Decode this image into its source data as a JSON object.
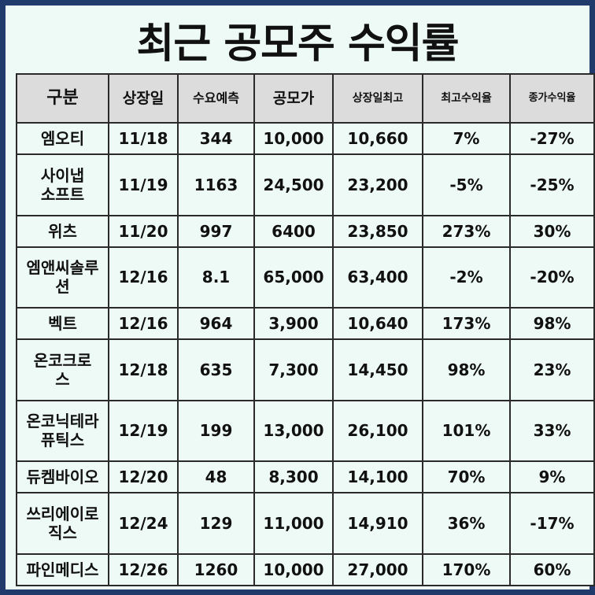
{
  "title": "최근 공모주 수익률",
  "headers": [
    "구분",
    "상장일",
    "수요예측",
    "공모가",
    "상장일최고",
    "최고수익율",
    "종가수익율"
  ],
  "rows": [
    {
      "name": "엠오티",
      "date": "11/18",
      "demand": "344",
      "price": "10,000",
      "high": "10,660",
      "max_return": "7%",
      "close_return": "-27%"
    },
    {
      "name": "사이냅\n소프트",
      "date": "11/19",
      "demand": "1163",
      "price": "24,500",
      "high": "23,200",
      "max_return": "-5%",
      "close_return": "-25%"
    },
    {
      "name": "위츠",
      "date": "11/20",
      "demand": "997",
      "price": "6400",
      "high": "23,850",
      "max_return": "273%",
      "close_return": "30%"
    },
    {
      "name": "엠앤씨솔루\n션",
      "date": "12/16",
      "demand": "8.1",
      "price": "65,000",
      "high": "63,400",
      "max_return": "-2%",
      "close_return": "-20%"
    },
    {
      "name": "벡트",
      "date": "12/16",
      "demand": "964",
      "price": "3,900",
      "high": "10,640",
      "max_return": "173%",
      "close_return": "98%"
    },
    {
      "name": "온코크로\n스",
      "date": "12/18",
      "demand": "635",
      "price": "7,300",
      "high": "14,450",
      "max_return": "98%",
      "close_return": "23%"
    },
    {
      "name": "온코닉테라\n퓨틱스",
      "date": "12/19",
      "demand": "199",
      "price": "13,000",
      "high": "26,100",
      "max_return": "101%",
      "close_return": "33%"
    },
    {
      "name": "듀켐바이오",
      "date": "12/20",
      "demand": "48",
      "price": "8,300",
      "high": "14,100",
      "max_return": "70%",
      "close_return": "9%"
    },
    {
      "name": "쓰리에이로\n직스",
      "date": "12/24",
      "demand": "129",
      "price": "11,000",
      "high": "14,910",
      "max_return": "36%",
      "close_return": "-17%"
    },
    {
      "name": "파인메디스",
      "date": "12/26",
      "demand": "1260",
      "price": "10,000",
      "high": "27,000",
      "max_return": "170%",
      "close_return": "60%"
    }
  ],
  "colors": {
    "frame_border": "#1f3a6b",
    "background": "#eefaf5",
    "header_fill": "#dcdcdc",
    "grid_line": "#2a2a2a",
    "text": "#111111"
  }
}
